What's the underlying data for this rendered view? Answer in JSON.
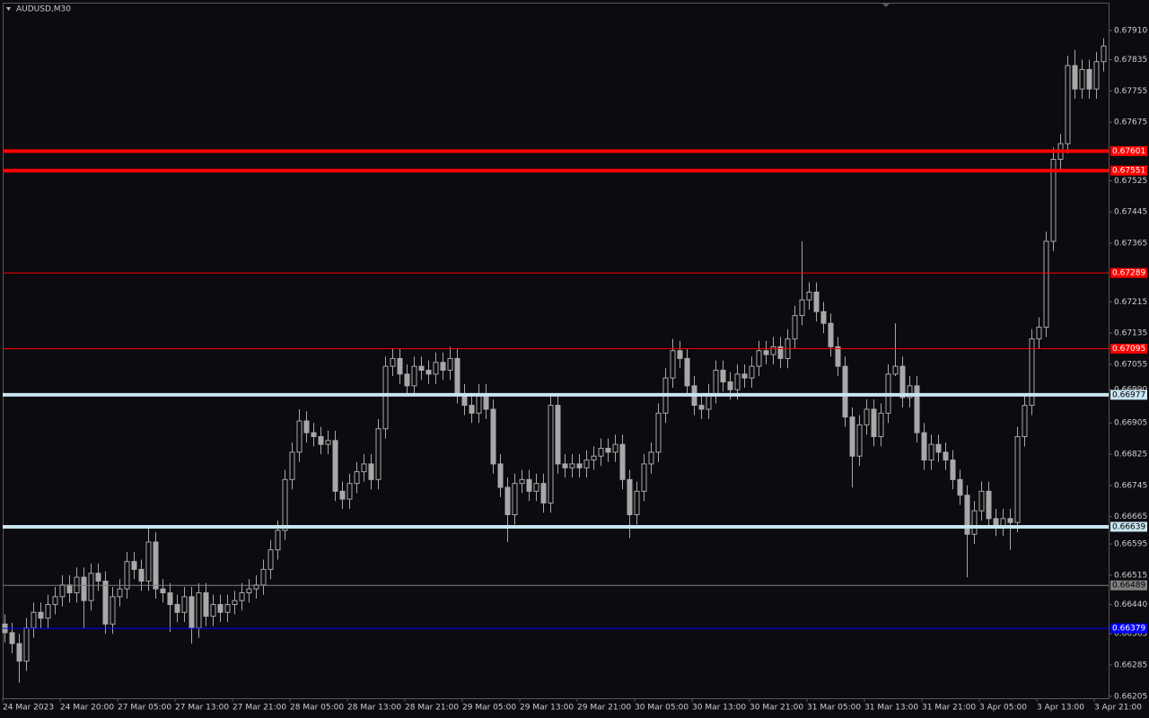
{
  "chart_data": {
    "type": "candlestick",
    "title": "AUDUSD,M30",
    "ylim": [
      0.662,
      0.67981
    ],
    "yticks": [
      {
        "value": 0.6791,
        "label": "0.67910"
      },
      0.67835,
      0.67755,
      0.67675,
      0.67525,
      0.67445,
      0.67365,
      0.67215,
      0.67135,
      0.67055,
      {
        "value": 0.6699,
        "label": "0.66990"
      },
      0.66905,
      0.66825,
      0.66745,
      0.66665,
      0.66595,
      0.66515,
      {
        "value": 0.6644,
        "label": "0.66440"
      },
      0.66365,
      0.66285,
      0.66205
    ],
    "x_labels": [
      "24 Mar 2023",
      "24 Mar 20:00",
      "27 Mar 05:00",
      "27 Mar 13:00",
      "27 Mar 21:00",
      "28 Mar 05:00",
      "28 Mar 13:00",
      "28 Mar 21:00",
      "29 Mar 05:00",
      "29 Mar 13:00",
      "29 Mar 21:00",
      "30 Mar 05:00",
      "30 Mar 13:00",
      "30 Mar 21:00",
      "31 Mar 05:00",
      "31 Mar 13:00",
      "31 Mar 21:00",
      "3 Apr 05:00",
      "3 Apr 13:00",
      "3 Apr 21:00"
    ],
    "candle_color": "#a8a8a8",
    "levels": [
      {
        "value": 0.67601,
        "color": "#ff0000",
        "style": "thick"
      },
      {
        "value": 0.67551,
        "color": "#ff0000",
        "style": "thick"
      },
      {
        "value": 0.67289,
        "color": "#ff0000",
        "style": "thin"
      },
      {
        "value": 0.67095,
        "color": "#ff0000",
        "style": "thin"
      },
      {
        "value": 0.66977,
        "color": "#c8e4f0",
        "style": "thick"
      },
      {
        "value": 0.66639,
        "color": "#c8e4f0",
        "style": "thick"
      },
      {
        "value": 0.66489,
        "color": "#808080",
        "style": "thin"
      },
      {
        "value": 0.66379,
        "color": "#0000ff",
        "style": "thin"
      }
    ],
    "candles": [
      [
        0.6639,
        0.66415,
        0.66343,
        0.66368
      ],
      [
        0.66368,
        0.66393,
        0.66315,
        0.6634
      ],
      [
        0.6634,
        0.66365,
        0.6624,
        0.66295
      ],
      [
        0.66295,
        0.66405,
        0.6627,
        0.6638
      ],
      [
        0.6638,
        0.66445,
        0.66355,
        0.6642
      ],
      [
        0.6642,
        0.66445,
        0.6638,
        0.66405
      ],
      [
        0.66405,
        0.66465,
        0.6638,
        0.6644
      ],
      [
        0.6644,
        0.66485,
        0.66415,
        0.6646
      ],
      [
        0.6646,
        0.66515,
        0.66435,
        0.6649
      ],
      [
        0.6649,
        0.66515,
        0.66445,
        0.6647
      ],
      [
        0.6647,
        0.66535,
        0.66445,
        0.6651
      ],
      [
        0.6651,
        0.66535,
        0.6638,
        0.6645
      ],
      [
        0.6645,
        0.66545,
        0.66425,
        0.6652
      ],
      [
        0.6652,
        0.66545,
        0.66475,
        0.665
      ],
      [
        0.665,
        0.66525,
        0.66365,
        0.6639
      ],
      [
        0.6639,
        0.66485,
        0.66365,
        0.6646
      ],
      [
        0.6646,
        0.66505,
        0.66435,
        0.6648
      ],
      [
        0.6648,
        0.66575,
        0.66455,
        0.6655
      ],
      [
        0.6655,
        0.66575,
        0.66505,
        0.6653
      ],
      [
        0.6653,
        0.66555,
        0.66475,
        0.665
      ],
      [
        0.665,
        0.6664,
        0.66475,
        0.666
      ],
      [
        0.666,
        0.66625,
        0.66455,
        0.6648
      ],
      [
        0.6648,
        0.66505,
        0.66445,
        0.6647
      ],
      [
        0.6647,
        0.66495,
        0.6637,
        0.6644
      ],
      [
        0.6644,
        0.66465,
        0.66395,
        0.6642
      ],
      [
        0.6642,
        0.66485,
        0.66395,
        0.6646
      ],
      [
        0.6646,
        0.66485,
        0.6634,
        0.6638
      ],
      [
        0.6638,
        0.66495,
        0.66355,
        0.6647
      ],
      [
        0.6647,
        0.66495,
        0.66385,
        0.6641
      ],
      [
        0.6641,
        0.66465,
        0.66385,
        0.6644
      ],
      [
        0.6644,
        0.66465,
        0.66395,
        0.6642
      ],
      [
        0.6642,
        0.66465,
        0.66395,
        0.6644
      ],
      [
        0.6644,
        0.66475,
        0.66415,
        0.6645
      ],
      [
        0.6645,
        0.66495,
        0.66425,
        0.6647
      ],
      [
        0.6647,
        0.66505,
        0.66445,
        0.6648
      ],
      [
        0.6648,
        0.66515,
        0.66455,
        0.6649
      ],
      [
        0.6649,
        0.66555,
        0.66465,
        0.6653
      ],
      [
        0.6653,
        0.66605,
        0.66505,
        0.6658
      ],
      [
        0.6658,
        0.66655,
        0.66555,
        0.6663
      ],
      [
        0.6663,
        0.66785,
        0.66605,
        0.6676
      ],
      [
        0.6676,
        0.66855,
        0.66735,
        0.6683
      ],
      [
        0.6683,
        0.6694,
        0.66805,
        0.6691
      ],
      [
        0.6691,
        0.66935,
        0.66855,
        0.6688
      ],
      [
        0.6688,
        0.66905,
        0.66845,
        0.6687
      ],
      [
        0.6687,
        0.66895,
        0.66825,
        0.6685
      ],
      [
        0.6685,
        0.66885,
        0.66825,
        0.6686
      ],
      [
        0.6686,
        0.66885,
        0.66705,
        0.6673
      ],
      [
        0.6673,
        0.66755,
        0.66685,
        0.6671
      ],
      [
        0.6671,
        0.66775,
        0.66685,
        0.6675
      ],
      [
        0.6675,
        0.66805,
        0.66725,
        0.6678
      ],
      [
        0.6678,
        0.66825,
        0.66755,
        0.668
      ],
      [
        0.668,
        0.66825,
        0.66735,
        0.6676
      ],
      [
        0.6676,
        0.66915,
        0.66735,
        0.6689
      ],
      [
        0.6689,
        0.67075,
        0.66865,
        0.6705
      ],
      [
        0.6705,
        0.67095,
        0.67025,
        0.6707
      ],
      [
        0.6707,
        0.67095,
        0.67005,
        0.6703
      ],
      [
        0.6703,
        0.67055,
        0.66975,
        0.67
      ],
      [
        0.67,
        0.67075,
        0.66975,
        0.6705
      ],
      [
        0.6705,
        0.67075,
        0.67015,
        0.6704
      ],
      [
        0.6704,
        0.67065,
        0.67005,
        0.6703
      ],
      [
        0.6703,
        0.67085,
        0.67005,
        0.6706
      ],
      [
        0.6706,
        0.67085,
        0.67015,
        0.6704
      ],
      [
        0.6704,
        0.671,
        0.67015,
        0.6707
      ],
      [
        0.6707,
        0.67095,
        0.66955,
        0.6698
      ],
      [
        0.6698,
        0.67005,
        0.66925,
        0.6695
      ],
      [
        0.6695,
        0.66975,
        0.66905,
        0.6693
      ],
      [
        0.6693,
        0.67005,
        0.66905,
        0.6698
      ],
      [
        0.6698,
        0.67005,
        0.66915,
        0.6694
      ],
      [
        0.6694,
        0.66965,
        0.66775,
        0.668
      ],
      [
        0.668,
        0.66825,
        0.66715,
        0.6674
      ],
      [
        0.6674,
        0.66765,
        0.666,
        0.6667
      ],
      [
        0.6667,
        0.66775,
        0.66645,
        0.6675
      ],
      [
        0.6675,
        0.66785,
        0.66725,
        0.6676
      ],
      [
        0.6676,
        0.66785,
        0.66705,
        0.6673
      ],
      [
        0.6673,
        0.66775,
        0.66705,
        0.6675
      ],
      [
        0.6675,
        0.66775,
        0.66675,
        0.667
      ],
      [
        0.667,
        0.66975,
        0.66675,
        0.6695
      ],
      [
        0.6695,
        0.66975,
        0.66775,
        0.668
      ],
      [
        0.668,
        0.66825,
        0.66765,
        0.6679
      ],
      [
        0.6679,
        0.66825,
        0.66765,
        0.668
      ],
      [
        0.668,
        0.66825,
        0.66765,
        0.6679
      ],
      [
        0.6679,
        0.66835,
        0.66765,
        0.6681
      ],
      [
        0.6681,
        0.66845,
        0.66785,
        0.6682
      ],
      [
        0.6682,
        0.66865,
        0.66795,
        0.6684
      ],
      [
        0.6684,
        0.66865,
        0.66805,
        0.6683
      ],
      [
        0.6683,
        0.66875,
        0.66805,
        0.6685
      ],
      [
        0.6685,
        0.66875,
        0.66735,
        0.6676
      ],
      [
        0.6676,
        0.66785,
        0.6661,
        0.6667
      ],
      [
        0.6667,
        0.66755,
        0.66645,
        0.6673
      ],
      [
        0.6673,
        0.66825,
        0.66705,
        0.668
      ],
      [
        0.668,
        0.66855,
        0.66775,
        0.6683
      ],
      [
        0.6683,
        0.66955,
        0.66805,
        0.6693
      ],
      [
        0.6693,
        0.67045,
        0.66905,
        0.6702
      ],
      [
        0.6702,
        0.6712,
        0.66995,
        0.6709
      ],
      [
        0.6709,
        0.67115,
        0.67045,
        0.6707
      ],
      [
        0.6707,
        0.67095,
        0.66975,
        0.67
      ],
      [
        0.67,
        0.67025,
        0.66925,
        0.6695
      ],
      [
        0.6695,
        0.66975,
        0.66915,
        0.6694
      ],
      [
        0.6694,
        0.67005,
        0.66915,
        0.6698
      ],
      [
        0.6698,
        0.67065,
        0.66955,
        0.6704
      ],
      [
        0.6704,
        0.67065,
        0.66985,
        0.6701
      ],
      [
        0.6701,
        0.67035,
        0.66965,
        0.6699
      ],
      [
        0.6699,
        0.67055,
        0.66965,
        0.6703
      ],
      [
        0.6703,
        0.67055,
        0.66995,
        0.6702
      ],
      [
        0.6702,
        0.67075,
        0.66995,
        0.6705
      ],
      [
        0.6705,
        0.67115,
        0.67025,
        0.6709
      ],
      [
        0.6709,
        0.67115,
        0.67055,
        0.6708
      ],
      [
        0.6708,
        0.67125,
        0.67055,
        0.671
      ],
      [
        0.671,
        0.67125,
        0.67045,
        0.6707
      ],
      [
        0.6707,
        0.67145,
        0.67045,
        0.6712
      ],
      [
        0.6712,
        0.67205,
        0.67095,
        0.6718
      ],
      [
        0.6718,
        0.6737,
        0.67155,
        0.6722
      ],
      [
        0.6722,
        0.67265,
        0.67195,
        0.6724
      ],
      [
        0.6724,
        0.67265,
        0.67165,
        0.6719
      ],
      [
        0.6719,
        0.67215,
        0.67135,
        0.6716
      ],
      [
        0.6716,
        0.67185,
        0.67075,
        0.671
      ],
      [
        0.671,
        0.67125,
        0.67025,
        0.6705
      ],
      [
        0.6705,
        0.67075,
        0.66895,
        0.6692
      ],
      [
        0.6692,
        0.66945,
        0.6674,
        0.6682
      ],
      [
        0.6682,
        0.66925,
        0.66795,
        0.669
      ],
      [
        0.669,
        0.66965,
        0.66875,
        0.6694
      ],
      [
        0.6694,
        0.66965,
        0.66845,
        0.6687
      ],
      [
        0.6687,
        0.66955,
        0.66845,
        0.6693
      ],
      [
        0.6693,
        0.67055,
        0.66905,
        0.6703
      ],
      [
        0.6703,
        0.6716,
        0.67025,
        0.6705
      ],
      [
        0.6705,
        0.67075,
        0.66945,
        0.6697
      ],
      [
        0.6697,
        0.67025,
        0.66945,
        0.67
      ],
      [
        0.67,
        0.67025,
        0.66855,
        0.6688
      ],
      [
        0.6688,
        0.66905,
        0.66785,
        0.6681
      ],
      [
        0.6681,
        0.66875,
        0.66785,
        0.6685
      ],
      [
        0.6685,
        0.66875,
        0.66805,
        0.6683
      ],
      [
        0.6683,
        0.66855,
        0.66785,
        0.6681
      ],
      [
        0.6681,
        0.66835,
        0.66735,
        0.6676
      ],
      [
        0.6676,
        0.66785,
        0.66695,
        0.6672
      ],
      [
        0.6672,
        0.66745,
        0.6651,
        0.6662
      ],
      [
        0.6662,
        0.66705,
        0.66595,
        0.6668
      ],
      [
        0.6668,
        0.66755,
        0.66655,
        0.6673
      ],
      [
        0.6673,
        0.66755,
        0.66635,
        0.6666
      ],
      [
        0.6666,
        0.66685,
        0.66615,
        0.6664
      ],
      [
        0.6664,
        0.66685,
        0.66615,
        0.6666
      ],
      [
        0.6666,
        0.66685,
        0.6658,
        0.6665
      ],
      [
        0.6665,
        0.66895,
        0.66625,
        0.6687
      ],
      [
        0.6687,
        0.66975,
        0.66845,
        0.6695
      ],
      [
        0.6695,
        0.67145,
        0.66925,
        0.6712
      ],
      [
        0.6712,
        0.67175,
        0.67095,
        0.6715
      ],
      [
        0.6715,
        0.67395,
        0.67125,
        0.6737
      ],
      [
        0.6737,
        0.6761,
        0.67345,
        0.6758
      ],
      [
        0.6758,
        0.67645,
        0.67555,
        0.6762
      ],
      [
        0.6762,
        0.67845,
        0.67595,
        0.6782
      ],
      [
        0.6782,
        0.6786,
        0.67735,
        0.6776
      ],
      [
        0.6776,
        0.67835,
        0.67735,
        0.6781
      ],
      [
        0.6781,
        0.67835,
        0.67735,
        0.6776
      ],
      [
        0.6776,
        0.67855,
        0.67735,
        0.6783
      ],
      [
        0.6783,
        0.6789,
        0.67805,
        0.6787
      ]
    ]
  }
}
